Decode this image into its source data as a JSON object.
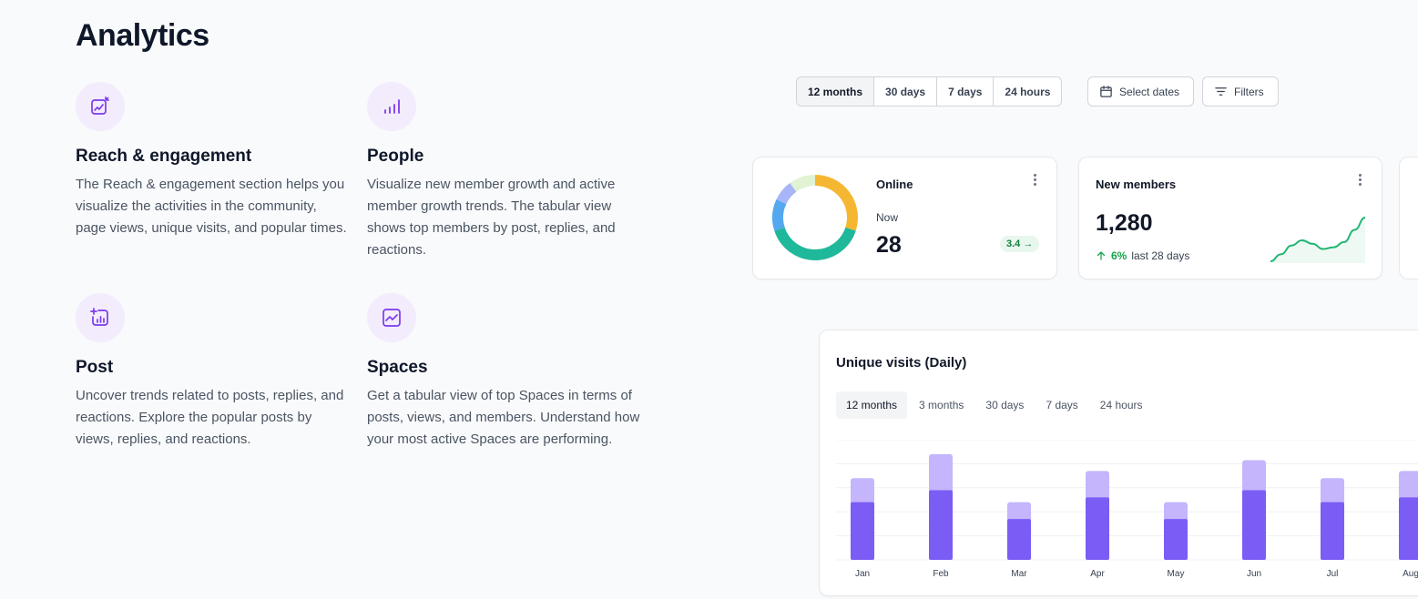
{
  "page": {
    "title": "Analytics"
  },
  "features": [
    {
      "title": "Reach & engagement",
      "description": "The Reach & engagement section helps you visualize the activities in the community, page views, unique visits, and popular times.",
      "icon": "chart-sparkle-icon"
    },
    {
      "title": "People",
      "description": "Visualize new member growth and active member growth trends. The tabular view shows top members by post, replies, and reactions.",
      "icon": "bar-signal-icon"
    },
    {
      "title": "Post",
      "description": "Uncover trends related to posts, replies, and reactions. Explore the popular posts by views, replies, and reactions.",
      "icon": "bar-plus-icon"
    },
    {
      "title": "Spaces",
      "description": "Get a tabular view of top Spaces in terms of posts, views, and members. Understand how your most active Spaces are performing.",
      "icon": "line-chart-icon"
    }
  ],
  "range_toggle": {
    "options": [
      "12 months",
      "30 days",
      "7 days",
      "24 hours"
    ],
    "active": "12 months"
  },
  "toolbar": {
    "select_dates_label": "Select dates",
    "filters_label": "Filters"
  },
  "online_card": {
    "title": "Online",
    "sublabel": "Now",
    "value": "28",
    "badge": "3.4 →",
    "donut": [
      {
        "value": 30,
        "color": "#f5b731"
      },
      {
        "value": 40,
        "color": "#1fb89b"
      },
      {
        "value": 12,
        "color": "#54a8f0"
      },
      {
        "value": 8,
        "color": "#a8b5f8"
      },
      {
        "value": 10,
        "color": "#e1f3d2"
      }
    ]
  },
  "new_members_card": {
    "title": "New members",
    "value": "1,280",
    "delta_pct": "6%",
    "delta_label": "last 28 days",
    "sparkline": [
      2,
      6,
      11,
      14,
      12,
      9,
      10,
      13,
      20,
      27
    ],
    "color": "#22b573"
  },
  "unique_visits": {
    "title": "Unique visits (Daily)",
    "tabs": [
      "12 months",
      "3 months",
      "30 days",
      "7 days",
      "24 hours"
    ],
    "active_tab": "12 months",
    "chart_data": {
      "type": "bar",
      "categories": [
        "Jan",
        "Feb",
        "Mar",
        "Apr",
        "May",
        "Jun",
        "Jul",
        "Aug"
      ],
      "series": [
        {
          "values": [
            48,
            58,
            34,
            52,
            34,
            58,
            48,
            52
          ],
          "color": "#7b5cf5"
        },
        {
          "values": [
            68,
            88,
            48,
            74,
            48,
            83,
            68,
            74
          ],
          "color": "#c4b5fd"
        }
      ],
      "ylim": [
        0,
        100
      ],
      "grid": true
    }
  }
}
